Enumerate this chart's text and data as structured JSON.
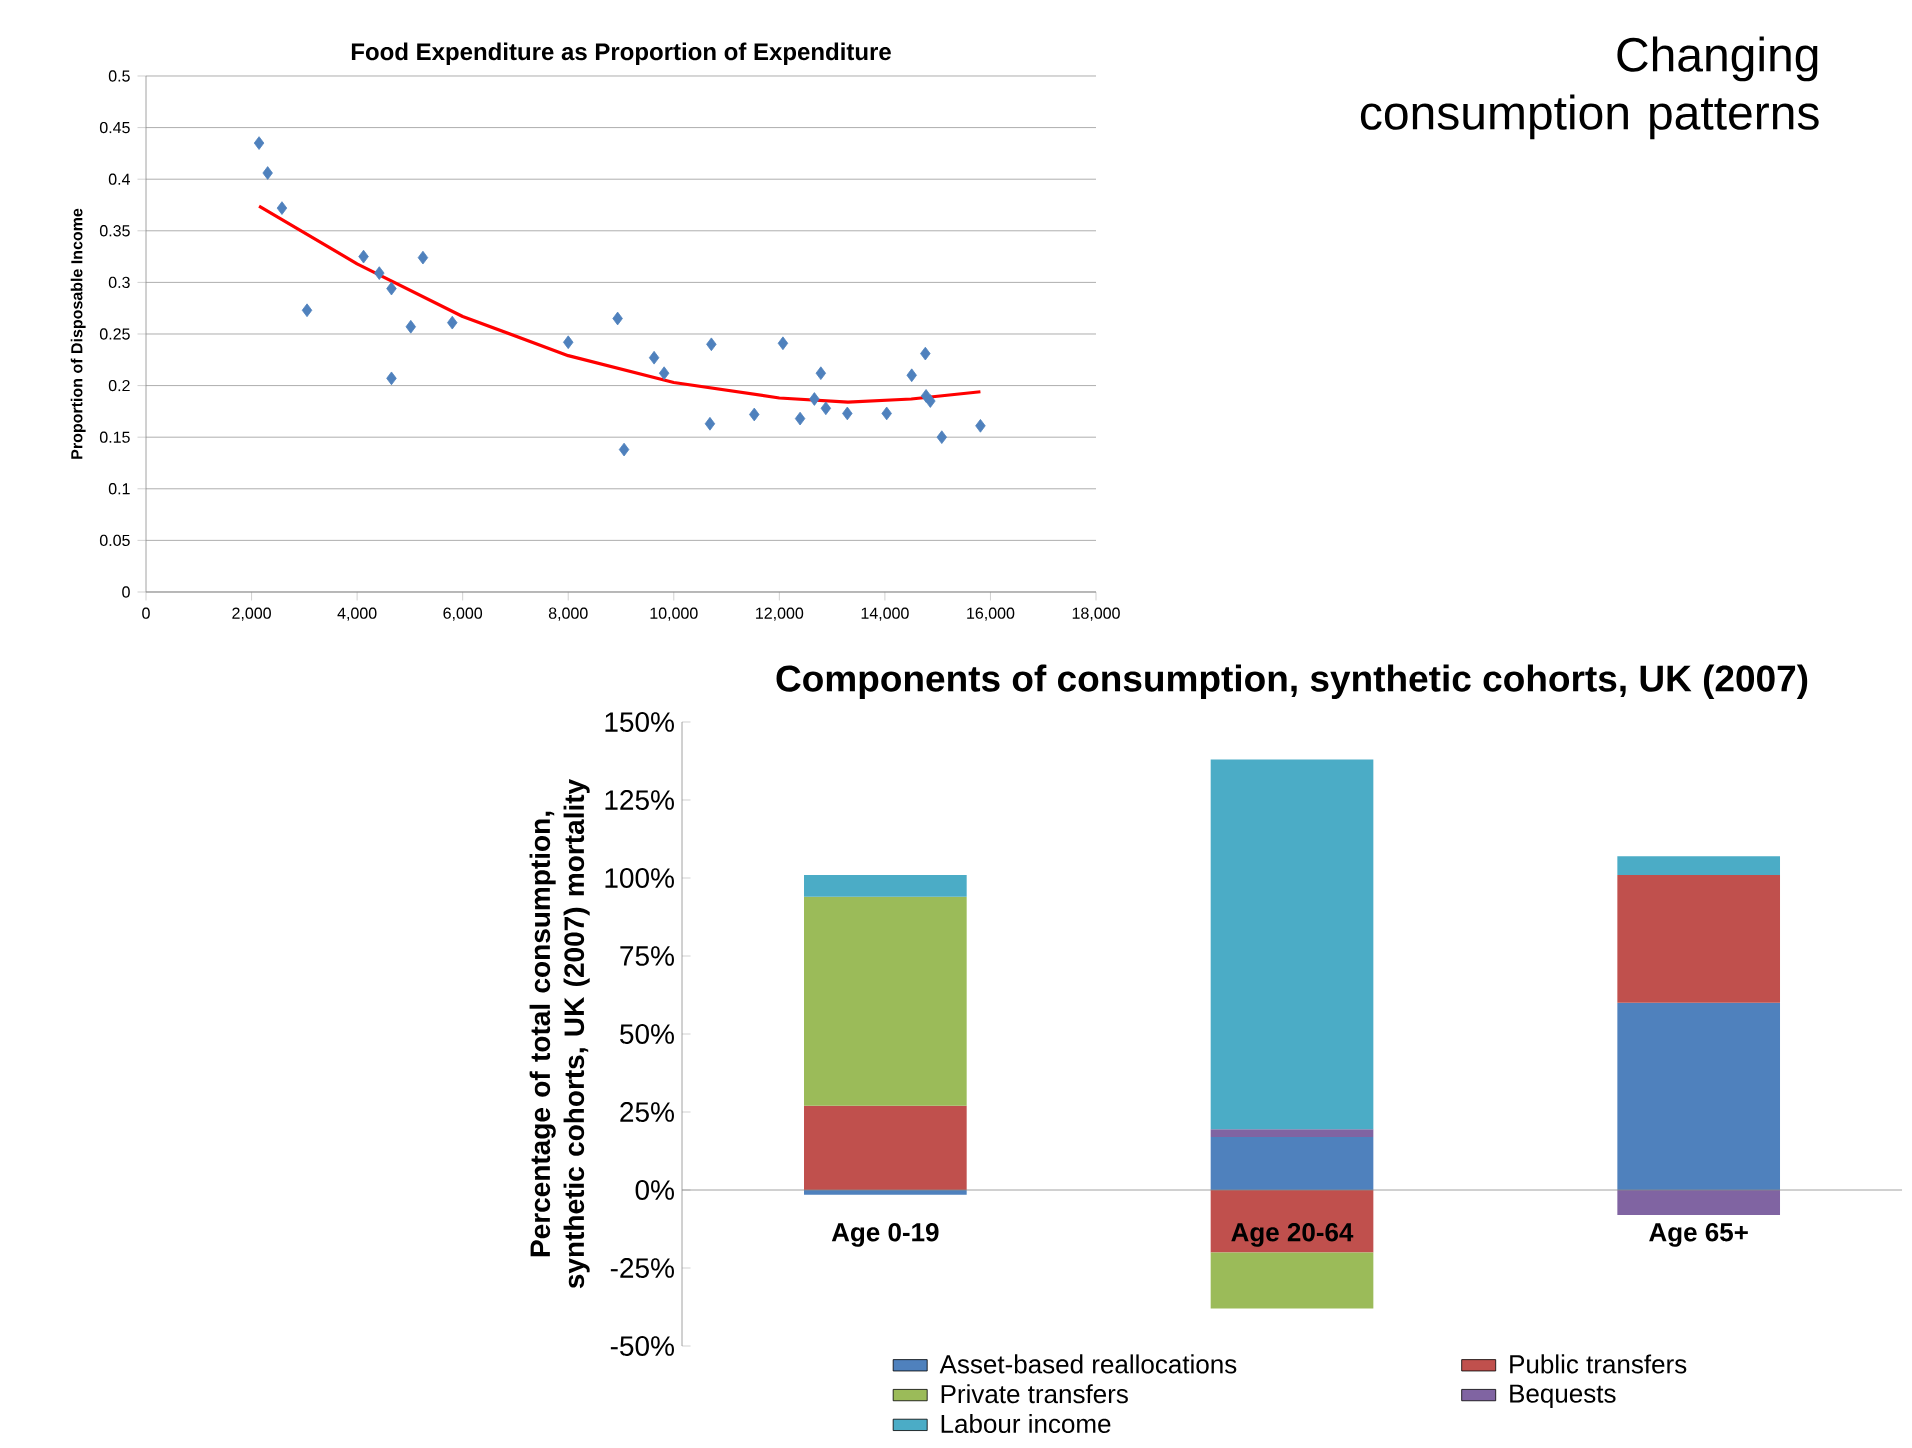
{
  "chart_data": [
    {
      "type": "scatter",
      "title": "Food Expenditure as Proportion of Expenditure",
      "ylabel": "Proportion of Disposable Income",
      "annotations": [
        "Changing consumption patterns"
      ],
      "xlim": [
        0,
        18000
      ],
      "xticks": [
        0,
        {
          "value": 2000,
          "label": "2,000"
        },
        {
          "value": 4000,
          "label": "4,000"
        },
        {
          "value": 6000,
          "label": "6,000"
        },
        {
          "value": 8000,
          "label": "8,000"
        },
        {
          "value": 10000,
          "label": "10,000"
        },
        {
          "value": 12000,
          "label": "12,000"
        },
        {
          "value": 14000,
          "label": "14,000"
        },
        {
          "value": 16000,
          "label": "16,000"
        },
        {
          "value": 18000,
          "label": "18,000"
        }
      ],
      "ylim": [
        0,
        0.5
      ],
      "yticks": [
        0,
        0.05,
        0.1,
        0.15,
        0.2,
        0.25,
        0.3,
        0.35,
        0.4,
        0.45,
        0.5
      ],
      "grid": "y",
      "marker": "diamond",
      "series": [
        {
          "color": "#4f81bd",
          "x": [
            2142,
            2305,
            2576,
            3051,
            4122,
            4420,
            4651,
            4651,
            5017,
            5247,
            5803,
            8000,
            8936,
            9058,
            9627,
            9817,
            10685,
            10712,
            11525,
            12068,
            12393,
            12664,
            12786,
            12881,
            13288,
            14034,
            14508,
            14766,
            14780,
            14861,
            15078,
            15810
          ],
          "values": [
            0.435,
            0.406,
            0.372,
            0.273,
            0.325,
            0.309,
            0.294,
            0.207,
            0.257,
            0.324,
            0.261,
            0.242,
            0.265,
            0.138,
            0.227,
            0.212,
            0.163,
            0.24,
            0.172,
            0.241,
            0.168,
            0.187,
            0.212,
            0.178,
            0.173,
            0.173,
            0.21,
            0.231,
            0.19,
            0.185,
            0.15,
            0.161
          ]
        },
        {
          "type": "line",
          "marker": "none",
          "color": "#ff0000",
          "x": [
            2142,
            4000,
            6000,
            8000,
            10000,
            12000,
            13300,
            14500,
            15810
          ],
          "values": [
            0.374,
            0.318,
            0.267,
            0.229,
            0.203,
            0.188,
            0.184,
            0.187,
            0.194
          ]
        }
      ]
    },
    {
      "type": "bar",
      "stacked": true,
      "title": "Components of consumption, synthetic cohorts, UK (2007)",
      "ylabel": "Percentage of total consumption, synthetic cohorts, UK (2007)  mortality",
      "categories": [
        "Age 0-19",
        "Age 20-64",
        "Age 65+"
      ],
      "ylim": [
        -50,
        150
      ],
      "yticks": [
        {
          "value": -50,
          "label": "-50%"
        },
        {
          "value": -25,
          "label": "-25%"
        },
        {
          "value": 0,
          "label": "0%"
        },
        {
          "value": 25,
          "label": "25%"
        },
        {
          "value": 50,
          "label": "50%"
        },
        {
          "value": 75,
          "label": "75%"
        },
        {
          "value": 100,
          "label": "100%"
        },
        {
          "value": 125,
          "label": "125%"
        },
        {
          "value": 150,
          "label": "150%"
        }
      ],
      "legend": "bottom",
      "series": [
        {
          "name": "Asset-based reallocations",
          "color": "#4f81bd",
          "values": [
            -1.5,
            17,
            60
          ]
        },
        {
          "name": "Public transfers",
          "color": "#c0504d",
          "values": [
            27,
            -20,
            41
          ]
        },
        {
          "name": "Private transfers",
          "color": "#9bbb59",
          "values": [
            67,
            -18,
            0
          ]
        },
        {
          "name": "Bequests",
          "color": "#8064a2",
          "values": [
            0,
            2.5,
            -8
          ]
        },
        {
          "name": "Labour income",
          "color": "#4bacc6",
          "values": [
            7,
            118.5,
            6
          ]
        }
      ]
    }
  ]
}
